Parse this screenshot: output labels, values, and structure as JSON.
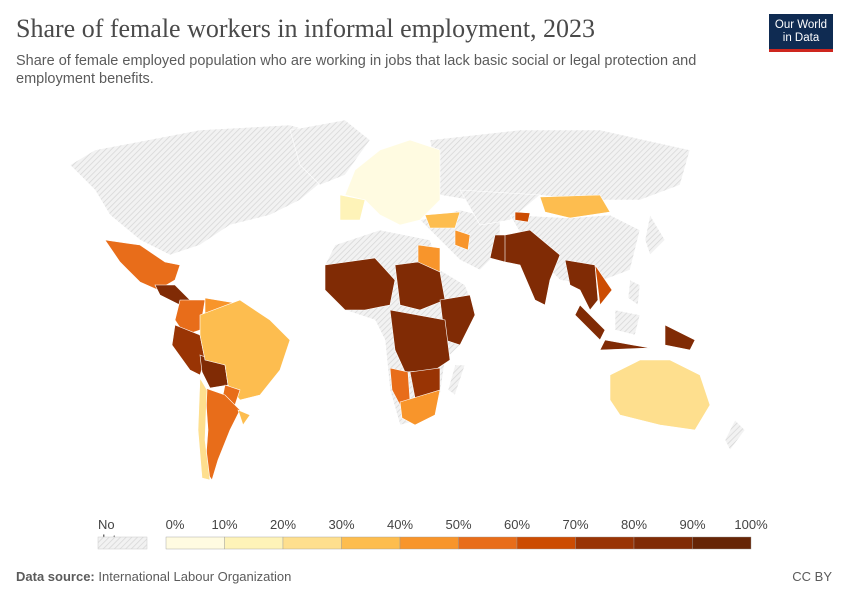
{
  "header": {
    "title": "Share of female workers in informal employment, 2023",
    "subtitle": "Share of female employed population who are working in jobs that lack basic social or legal protection and employment benefits.",
    "logo": "Our World in Data"
  },
  "legend": {
    "no_data_label": "No data",
    "ticks": [
      "0%",
      "10%",
      "20%",
      "30%",
      "40%",
      "50%",
      "60%",
      "70%",
      "80%",
      "90%",
      "100%"
    ],
    "colors": [
      "#fffbe1",
      "#fef3b8",
      "#fedf8e",
      "#fdbd4f",
      "#f8952b",
      "#e86d1a",
      "#cc4c02",
      "#993404",
      "#802b05",
      "#662506"
    ],
    "no_data_color": "#e0e0e0"
  },
  "map_data": {
    "unit": "%",
    "bins_by_region": [
      {
        "region": "Mexico",
        "bin": "50-60%"
      },
      {
        "region": "Central America",
        "bin": "80-90%"
      },
      {
        "region": "Colombia",
        "bin": "50-60%"
      },
      {
        "region": "Venezuela",
        "bin": "40-50%"
      },
      {
        "region": "Peru",
        "bin": "70-80%"
      },
      {
        "region": "Bolivia",
        "bin": "80-90%"
      },
      {
        "region": "Brazil",
        "bin": "30-40%"
      },
      {
        "region": "Paraguay",
        "bin": "50-60%"
      },
      {
        "region": "Argentina",
        "bin": "50-60%"
      },
      {
        "region": "Chile",
        "bin": "20-30%"
      },
      {
        "region": "Uruguay",
        "bin": "30-40%"
      },
      {
        "region": "Europe",
        "bin": "0-10%"
      },
      {
        "region": "Spain",
        "bin": "10-20%"
      },
      {
        "region": "Turkey",
        "bin": "30-40%"
      },
      {
        "region": "Iraq",
        "bin": "40-50%"
      },
      {
        "region": "Egypt",
        "bin": "40-50%"
      },
      {
        "region": "Mongolia",
        "bin": "30-40%"
      },
      {
        "region": "Kyrgyzstan",
        "bin": "60-70%"
      },
      {
        "region": "Pakistan",
        "bin": "80-90%"
      },
      {
        "region": "India",
        "bin": "80-90%"
      },
      {
        "region": "Myanmar/Thailand/Cambodia",
        "bin": "80-90%"
      },
      {
        "region": "Vietnam/Laos",
        "bin": "60-70%"
      },
      {
        "region": "Indonesia",
        "bin": "80-90%"
      },
      {
        "region": "Papua New Guinea",
        "bin": "80-90%"
      },
      {
        "region": "Australia",
        "bin": "20-30%"
      },
      {
        "region": "West Africa",
        "bin": "80-90%"
      },
      {
        "region": "Sudan/Chad",
        "bin": "80-90%"
      },
      {
        "region": "Ethiopia/Horn of Africa",
        "bin": "80-90%"
      },
      {
        "region": "Central/East Africa",
        "bin": "80-90%"
      },
      {
        "region": "Namibia",
        "bin": "50-60%"
      },
      {
        "region": "Southern Africa interior",
        "bin": "70-80%"
      },
      {
        "region": "South Africa",
        "bin": "40-50%"
      }
    ]
  },
  "footer": {
    "source_label": "Data source:",
    "source": "International Labour Organization",
    "license": "CC BY"
  }
}
